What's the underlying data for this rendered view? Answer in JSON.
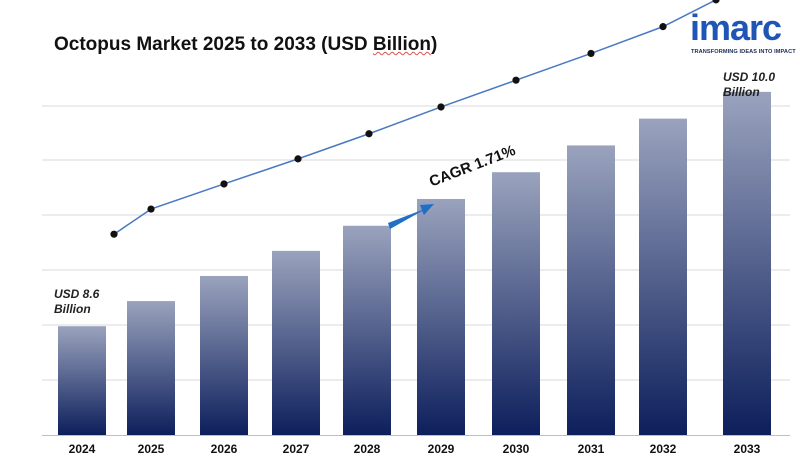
{
  "title": "Octopus Market 2025 to 2033 (USD Billion)",
  "title_parts": [
    "Octopus Market 2025 to 2033 (USD ",
    "Billion",
    ")"
  ],
  "logo": {
    "text": "imarc",
    "tagline": "TRANSFORMING IDEAS INTO IMPACT"
  },
  "annotations": {
    "start_line1": "USD 8.6",
    "start_line2": "Billion",
    "end_line1": "USD 10.0",
    "end_line2": "Billion",
    "cagr": "CAGR 1.71%"
  },
  "colors": {
    "bar_top": "#9aa3bd",
    "bar_bottom": "#0d1f5c",
    "line": "#4a78c2",
    "marker": "#111111",
    "arrow": "#1f6fc7",
    "grid": "#d9d9d9"
  },
  "chart_data": {
    "type": "bar",
    "categories": [
      "2024",
      "2025",
      "2026",
      "2027",
      "2028",
      "2029",
      "2030",
      "2031",
      "2032",
      "2033"
    ],
    "values": [
      8.6,
      8.75,
      8.9,
      9.05,
      9.2,
      9.36,
      9.52,
      9.68,
      9.84,
      10.0
    ],
    "trend_line": true,
    "ylim": [
      7.95,
      10.25
    ],
    "grid": true,
    "title": "Octopus Market 2025 to 2033 (USD Billion)",
    "xlabel": "",
    "ylabel": ""
  }
}
